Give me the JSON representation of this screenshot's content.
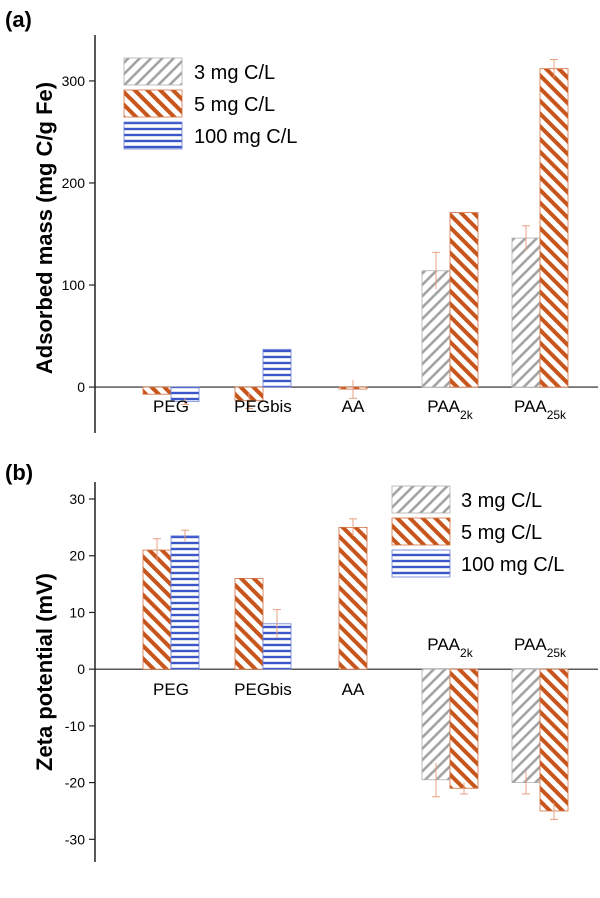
{
  "chart_data": [
    {
      "panel": "(a)",
      "type": "bar",
      "ylabel": "Adsorbed mass (mg C/g Fe)",
      "ylim": [
        -45,
        345
      ],
      "yticks": [
        0,
        100,
        200,
        300
      ],
      "categories": [
        "PEG",
        "PEGbis",
        "AA",
        "PAA2k",
        "PAA25k"
      ],
      "category_subscripts": [
        "",
        "",
        "",
        "2k",
        "25k"
      ],
      "category_bases": [
        "PEG",
        "PEGbis",
        "AA",
        "PAA",
        "PAA"
      ],
      "legend_position": "top-left",
      "series": [
        {
          "name": "3 mg C/L",
          "values": [
            null,
            null,
            null,
            114,
            146
          ],
          "errors": [
            null,
            null,
            null,
            18,
            12
          ]
        },
        {
          "name": "5 mg C/L",
          "values": [
            -7,
            -13,
            -2,
            171,
            312
          ],
          "errors": [
            0,
            8,
            9,
            0,
            9
          ]
        },
        {
          "name": "100 mg C/L",
          "values": [
            -14,
            37,
            null,
            null,
            null
          ],
          "errors": [
            3,
            0,
            null,
            null,
            null
          ]
        }
      ]
    },
    {
      "panel": "(b)",
      "type": "bar",
      "ylabel": "Zeta potential (mV)",
      "ylim": [
        -34,
        33
      ],
      "yticks": [
        -30,
        -20,
        -10,
        0,
        10,
        20,
        30
      ],
      "categories": [
        "PEG",
        "PEGbis",
        "AA",
        "PAA2k",
        "PAA25k"
      ],
      "category_subscripts": [
        "",
        "",
        "",
        "2k",
        "25k"
      ],
      "category_bases": [
        "PEG",
        "PEGbis",
        "AA",
        "PAA",
        "PAA"
      ],
      "legend_position": "top-right",
      "series": [
        {
          "name": "3 mg C/L",
          "values": [
            null,
            null,
            null,
            -19.5,
            -20
          ],
          "errors": [
            null,
            null,
            null,
            3,
            2
          ]
        },
        {
          "name": "5 mg C/L",
          "values": [
            21,
            16,
            25,
            -21,
            -25
          ],
          "errors": [
            2,
            0,
            1.5,
            1,
            1.5
          ]
        },
        {
          "name": "100 mg C/L",
          "values": [
            23.5,
            8,
            null,
            null,
            null
          ],
          "errors": [
            1,
            2.5,
            null,
            null,
            null
          ]
        }
      ]
    }
  ],
  "colors": {
    "3 mg C/L": "#9a9a9a",
    "5 mg C/L": "#c8561c",
    "100 mg C/L": "#3a56c8",
    "error_bar": "#e8a080"
  }
}
